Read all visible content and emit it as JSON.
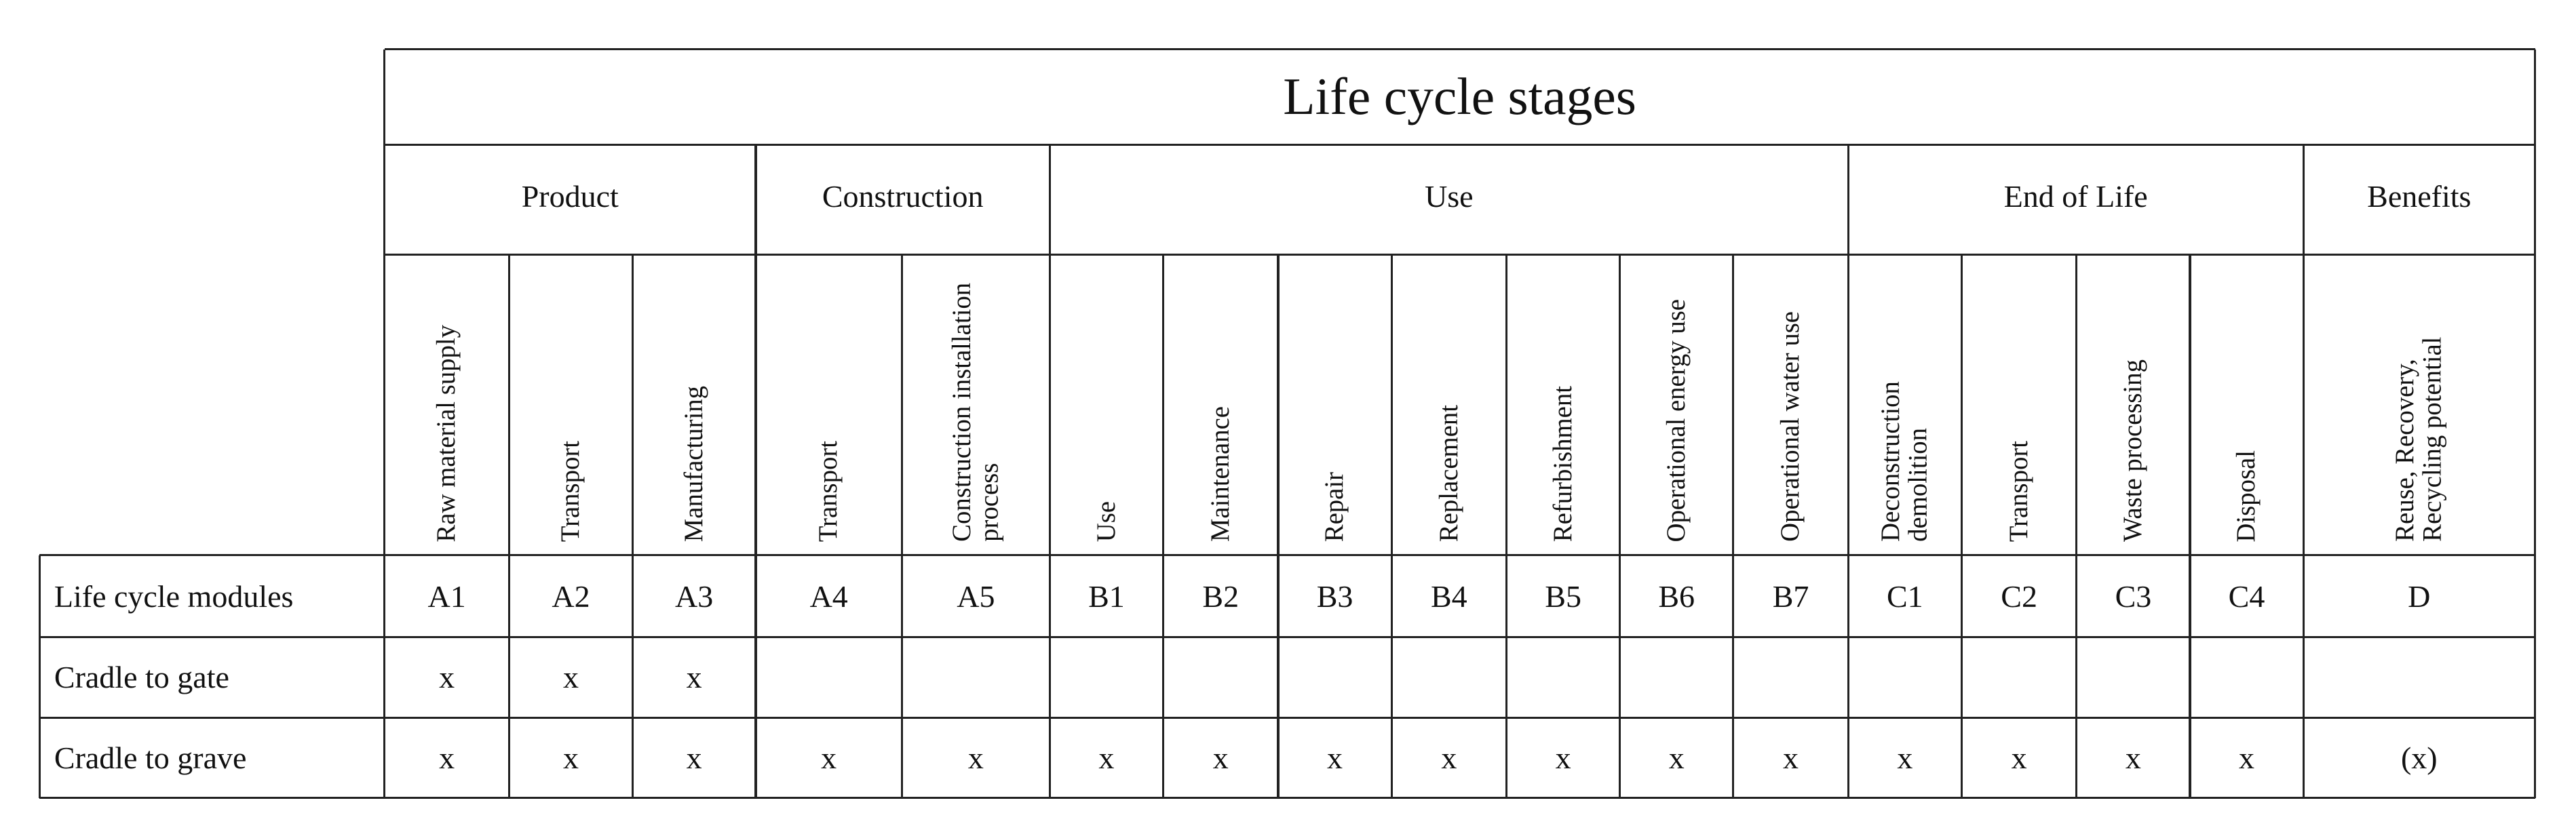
{
  "table": {
    "title": "Life cycle stages",
    "groups": [
      {
        "label": "Product",
        "columns": [
          {
            "name": "Raw material supply",
            "module": "A1"
          },
          {
            "name": "Transport",
            "module": "A2"
          },
          {
            "name": "Manufacturing",
            "module": "A3"
          }
        ]
      },
      {
        "label": "Construction",
        "columns": [
          {
            "name": "Transport",
            "module": "A4"
          },
          {
            "name": "Construction installation process",
            "module": "A5"
          }
        ]
      },
      {
        "label": "Use",
        "columns": [
          {
            "name": "Use",
            "module": "B1"
          },
          {
            "name": "Maintenance",
            "module": "B2"
          },
          {
            "name": "Repair",
            "module": "B3"
          },
          {
            "name": "Replacement",
            "module": "B4"
          },
          {
            "name": "Refurbishment",
            "module": "B5"
          },
          {
            "name": "Operational energy use",
            "module": "B6"
          },
          {
            "name": "Operational water use",
            "module": "B7"
          }
        ]
      },
      {
        "label": "End of Life",
        "columns": [
          {
            "name": "Deconstruction demolition",
            "module": "C1"
          },
          {
            "name": "Transport",
            "module": "C2"
          },
          {
            "name": "Waste processing",
            "module": "C3"
          },
          {
            "name": "Disposal",
            "module": "C4"
          }
        ]
      },
      {
        "label": "Benefits",
        "columns": [
          {
            "name": "Reuse, Recovery, Recycling potential",
            "module": "D"
          }
        ]
      }
    ],
    "modules_row_label": "Life cycle modules",
    "rows": [
      {
        "label": "Cradle to gate",
        "marks": [
          "x",
          "x",
          "x",
          null,
          null,
          null,
          null,
          null,
          null,
          null,
          null,
          null,
          null,
          null,
          null,
          null,
          null
        ]
      },
      {
        "label": "Cradle to grave",
        "marks": [
          "x",
          "x",
          "x",
          "x",
          "x",
          "x",
          "x",
          "x",
          "x",
          "x",
          "x",
          "x",
          "x",
          "x",
          "x",
          "x",
          "(x)"
        ]
      }
    ]
  }
}
